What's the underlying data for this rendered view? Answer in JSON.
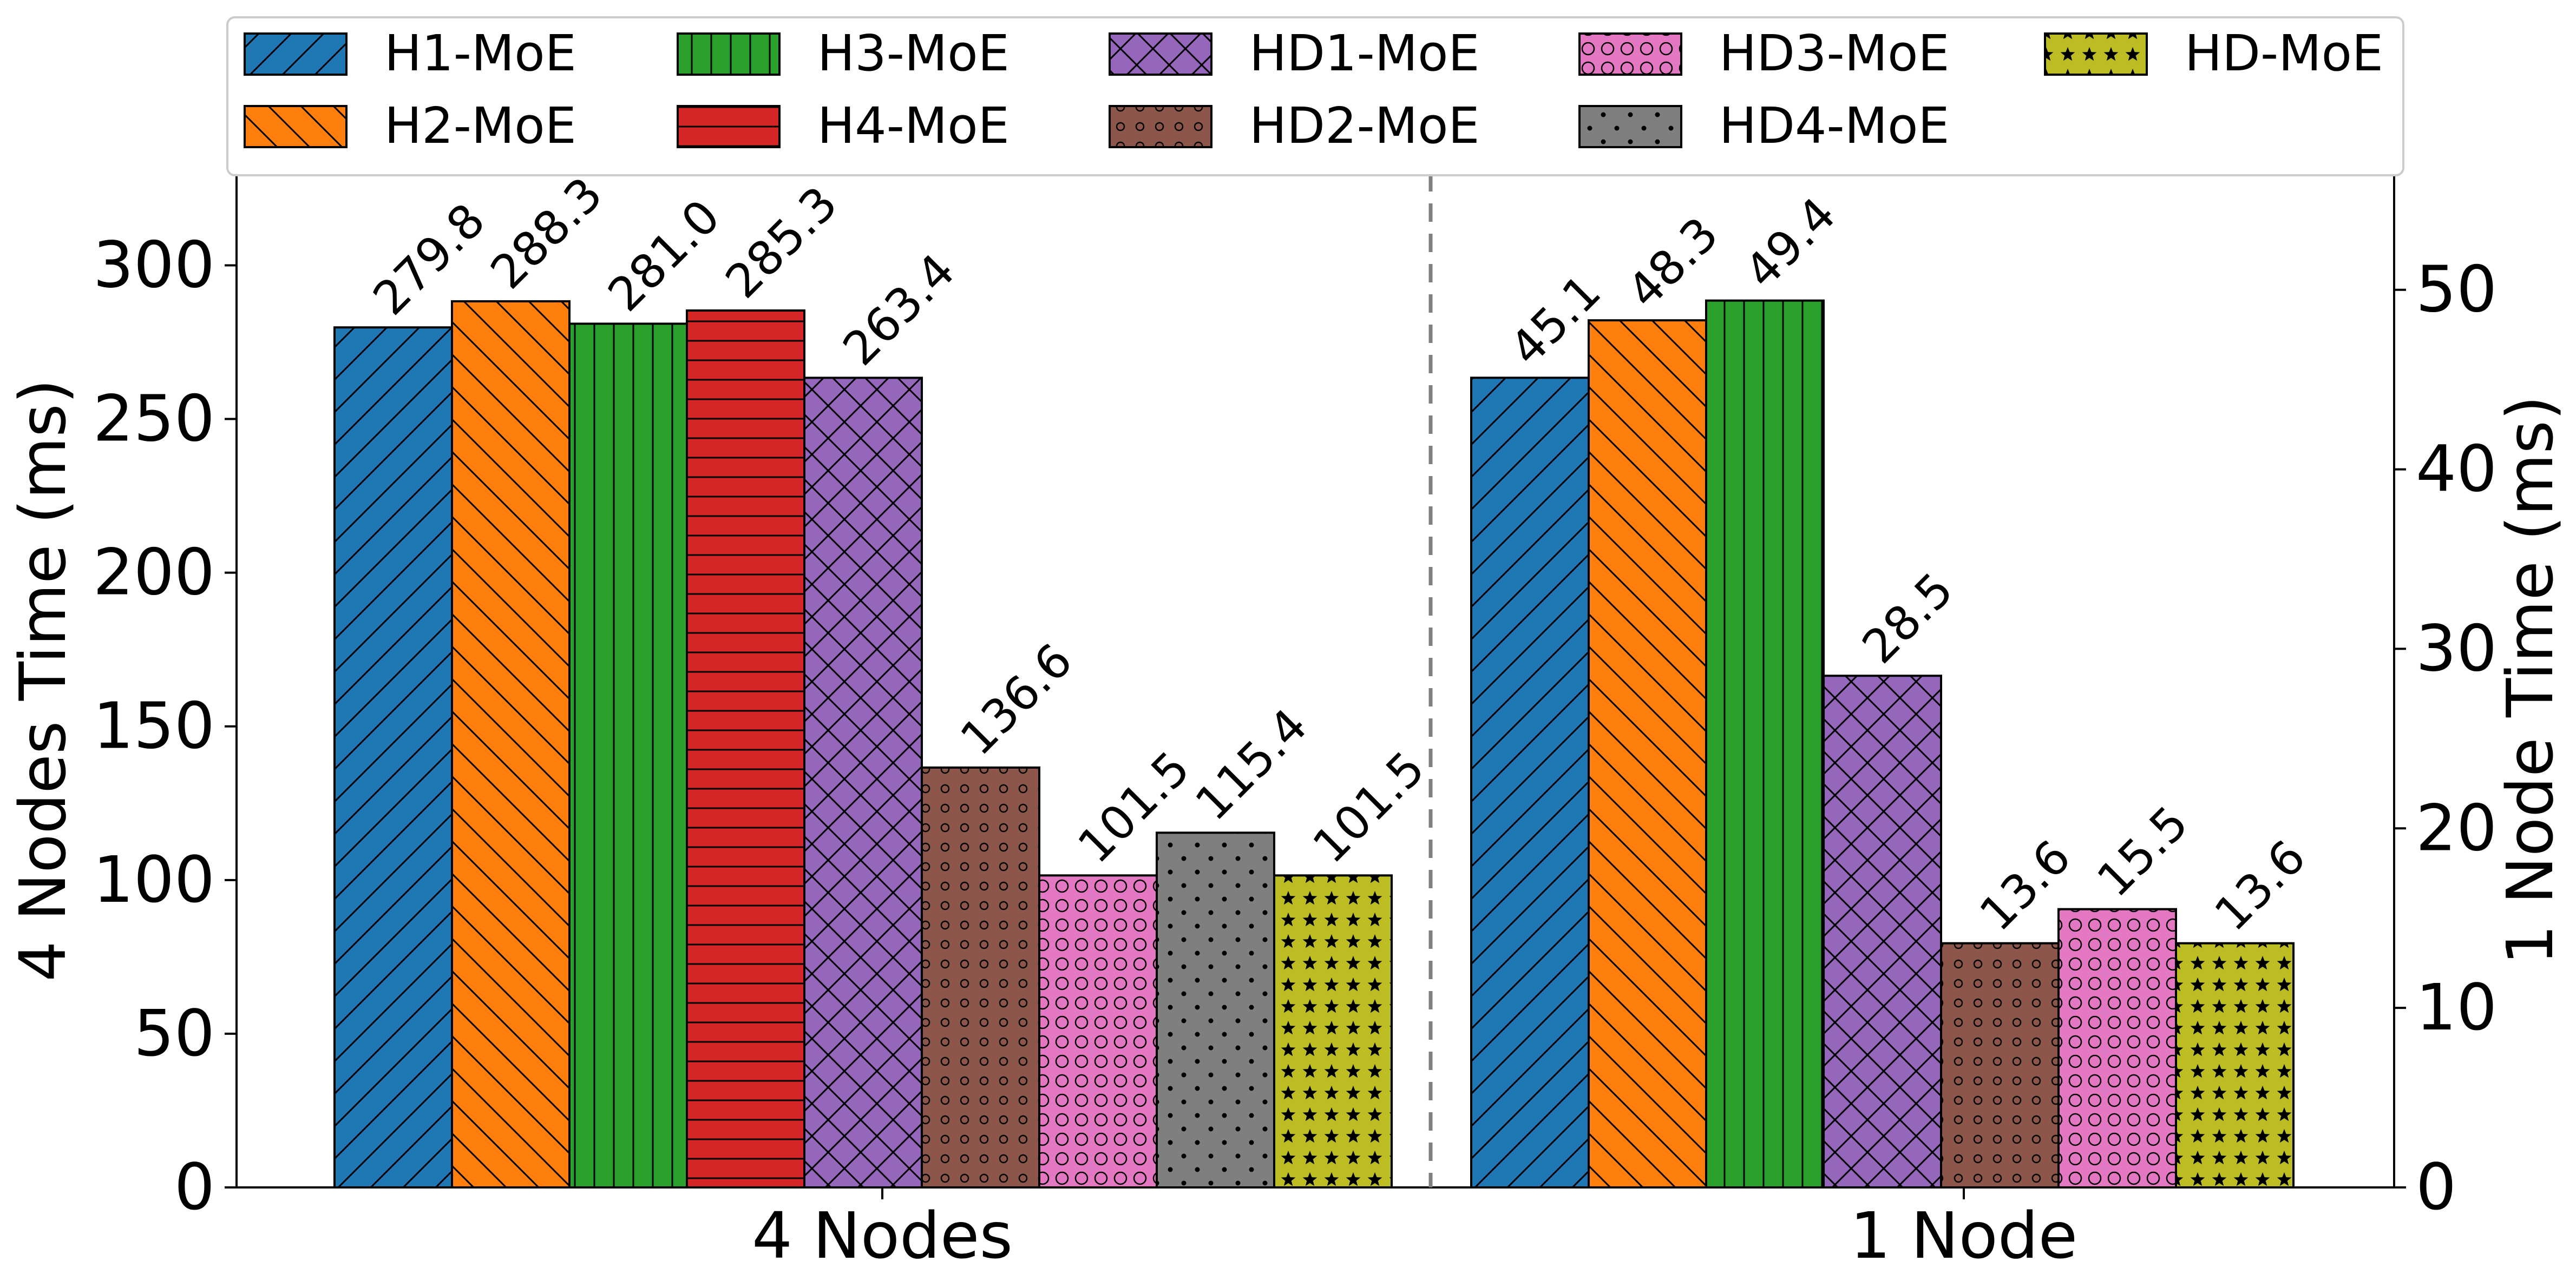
{
  "chart_data": {
    "type": "bar",
    "title": "",
    "legend": {
      "location": "top-center",
      "entries": [
        {
          "name": "H1-MoE",
          "color": "#1f77b4",
          "hatch": "diag-forward"
        },
        {
          "name": "H2-MoE",
          "color": "#ff7f0e",
          "hatch": "diag-back"
        },
        {
          "name": "H3-MoE",
          "color": "#2ca02c",
          "hatch": "vertical"
        },
        {
          "name": "H4-MoE",
          "color": "#d62728",
          "hatch": "horizontal"
        },
        {
          "name": "HD1-MoE",
          "color": "#9467bd",
          "hatch": "cross"
        },
        {
          "name": "HD2-MoE",
          "color": "#8c564b",
          "hatch": "small-circles"
        },
        {
          "name": "HD3-MoE",
          "color": "#e377c2",
          "hatch": "big-circles"
        },
        {
          "name": "HD4-MoE",
          "color": "#7f7f7f",
          "hatch": "dots"
        },
        {
          "name": "HD-MoE",
          "color": "#bcbd22",
          "hatch": "stars"
        }
      ]
    },
    "groups": [
      {
        "label": "4 Nodes",
        "axis": "left",
        "ylabel": "4 Nodes Time (ms)",
        "ylim": [
          0,
          330
        ],
        "yticks": [
          "0",
          "50",
          "100",
          "150",
          "200",
          "250",
          "300"
        ],
        "series": [
          "H1-MoE",
          "H2-MoE",
          "H3-MoE",
          "H4-MoE",
          "HD1-MoE",
          "HD2-MoE",
          "HD3-MoE",
          "HD4-MoE",
          "HD-MoE"
        ],
        "values": [
          279.8,
          288.3,
          281.0,
          285.3,
          263.4,
          136.6,
          101.5,
          115.4,
          101.5
        ],
        "value_labels": [
          "279.8",
          "288.3",
          "281.0",
          "285.3",
          "263.4",
          "136.6",
          "101.5",
          "115.4",
          "101.5"
        ]
      },
      {
        "label": "1 Node",
        "axis": "right",
        "ylabel": "1 Node Time (ms)",
        "ylim": [
          0,
          56.5
        ],
        "yticks": [
          "0",
          "10",
          "20",
          "30",
          "40",
          "50"
        ],
        "series": [
          "H1-MoE",
          "H2-MoE",
          "H3-MoE",
          "HD1-MoE",
          "HD2-MoE",
          "HD3-MoE",
          "HD-MoE"
        ],
        "values": [
          45.1,
          48.3,
          49.4,
          28.5,
          13.6,
          15.5,
          13.6
        ],
        "value_labels": [
          "45.1",
          "48.3",
          "49.4",
          "28.5",
          "13.6",
          "15.5",
          "13.6"
        ]
      }
    ]
  }
}
